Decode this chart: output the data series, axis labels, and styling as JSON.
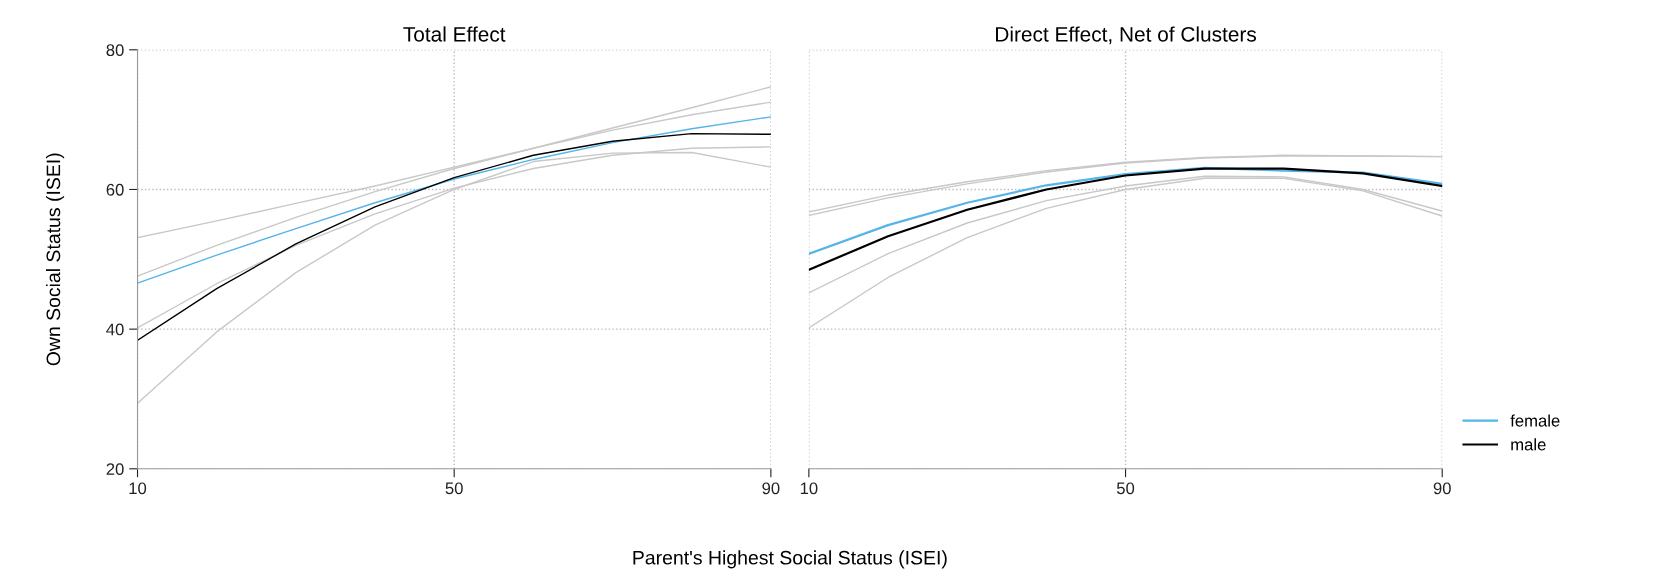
{
  "chart_data": [
    {
      "type": "line",
      "title": "Total Effect",
      "ylabel": "Own Social Status (ISEI)",
      "xlabel": "Parent's Highest Social Status (ISEI)",
      "x": [
        10,
        20,
        30,
        40,
        50,
        60,
        70,
        80,
        90
      ],
      "xlim": [
        10,
        90
      ],
      "xticks": [
        10,
        50,
        90
      ],
      "ylim": [
        20,
        80
      ],
      "yticks": [
        20,
        40,
        60,
        80
      ],
      "grid": true,
      "series": [
        {
          "color": "#c8c8c8",
          "values": [
            40.2,
            46.5,
            52.0,
            56.5,
            60.2,
            63.0,
            64.9,
            65.9,
            66.1
          ]
        },
        {
          "color": "#c8c8c8",
          "values": [
            53.1,
            55.5,
            58.0,
            60.5,
            63.2,
            65.9,
            68.8,
            71.7,
            74.7
          ]
        },
        {
          "color": "#c8c8c8",
          "values": [
            29.4,
            39.6,
            48.1,
            54.9,
            60.0,
            64.0,
            65.2,
            65.3,
            63.2
          ]
        },
        {
          "color": "#c8c8c8",
          "values": [
            47.6,
            52.0,
            56.0,
            59.7,
            63.0,
            65.9,
            68.5,
            70.7,
            72.5
          ]
        },
        {
          "color": "#56b4e9",
          "values": [
            46.6,
            50.6,
            54.4,
            58.1,
            61.5,
            64.3,
            66.7,
            68.7,
            70.4
          ]
        },
        {
          "color": "#000000",
          "values": [
            38.4,
            45.8,
            52.2,
            57.5,
            61.7,
            64.9,
            66.9,
            68.0,
            67.9
          ]
        }
      ]
    },
    {
      "type": "line",
      "title": "Direct Effect, Net of Clusters",
      "x": [
        10,
        20,
        30,
        40,
        50,
        60,
        70,
        80,
        90
      ],
      "xlim": [
        10,
        90
      ],
      "xticks": [
        10,
        50,
        90
      ],
      "ylim": [
        20,
        80
      ],
      "tick_labels": "x",
      "grid": true,
      "legend": "bottom right",
      "series": [
        {
          "color": "#c8c8c8",
          "values": [
            45.2,
            50.8,
            55.2,
            58.4,
            60.5,
            61.9,
            61.8,
            60.0,
            56.9
          ]
        },
        {
          "color": "#c8c8c8",
          "values": [
            56.8,
            59.2,
            61.1,
            62.7,
            63.9,
            64.6,
            64.9,
            64.8,
            64.7
          ]
        },
        {
          "color": "#c8c8c8",
          "values": [
            40.2,
            47.4,
            53.1,
            57.3,
            60.0,
            61.6,
            61.6,
            59.8,
            56.2
          ]
        },
        {
          "color": "#c8c8c8",
          "values": [
            56.3,
            58.8,
            60.8,
            62.5,
            63.8,
            64.5,
            64.8,
            64.8,
            64.7
          ]
        },
        {
          "name": "female",
          "color": "#56b4e9",
          "values": [
            50.8,
            54.9,
            58.1,
            60.6,
            62.2,
            63.1,
            62.7,
            62.4,
            60.8
          ]
        },
        {
          "name": "male",
          "color": "#000000",
          "values": [
            48.5,
            53.3,
            57.1,
            60.0,
            62.0,
            63.0,
            63.0,
            62.3,
            60.5
          ]
        }
      ]
    }
  ]
}
